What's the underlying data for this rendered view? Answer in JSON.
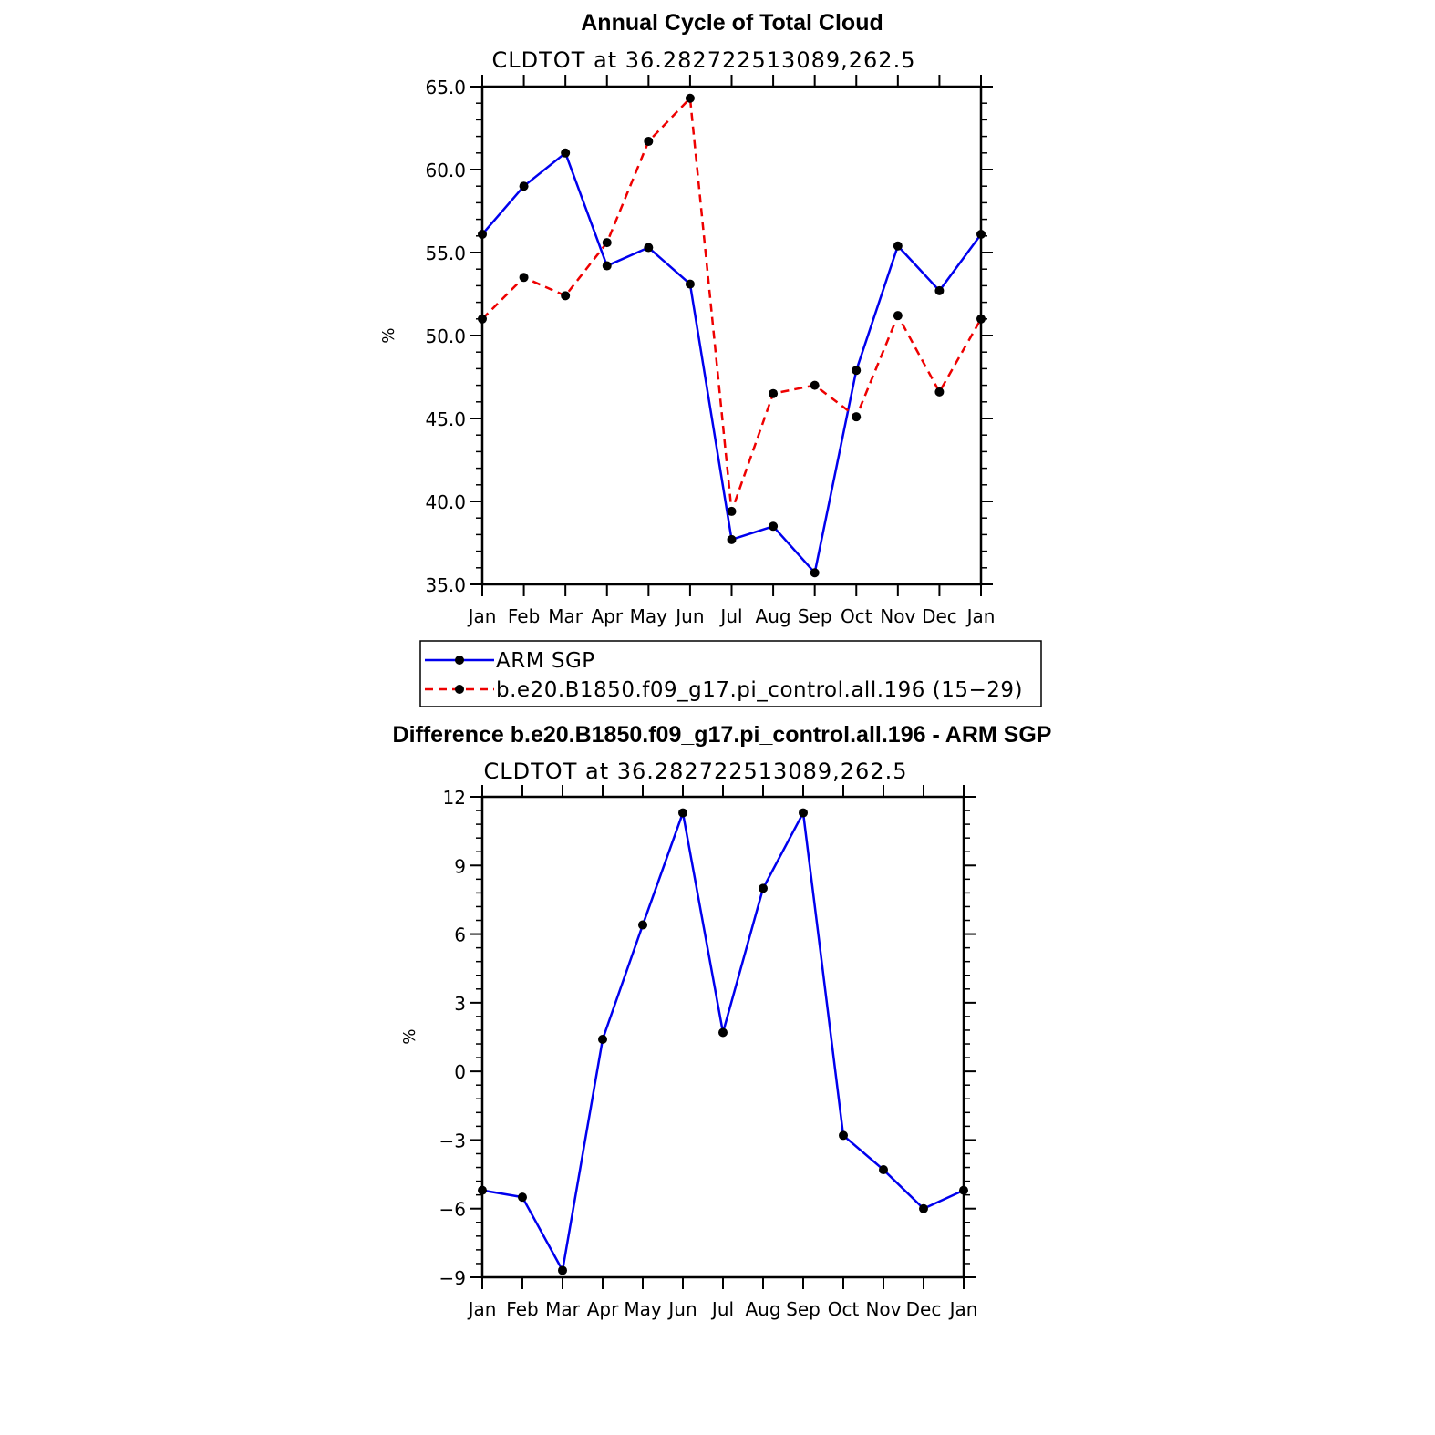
{
  "chart_data": [
    {
      "type": "line",
      "title": "Annual Cycle of Total Cloud",
      "subtitle": "CLDTOT at 36.282722513089,262.5",
      "ylabel": "%",
      "xlabel": "",
      "categories": [
        "Jan",
        "Feb",
        "Mar",
        "Apr",
        "May",
        "Jun",
        "Jul",
        "Aug",
        "Sep",
        "Oct",
        "Nov",
        "Dec",
        "Jan"
      ],
      "ylim": [
        35.0,
        65.0
      ],
      "yticks": [
        "35.0",
        "40.0",
        "45.0",
        "50.0",
        "55.0",
        "60.0",
        "65.0"
      ],
      "ytick_values": [
        35,
        40,
        45,
        50,
        55,
        60,
        65
      ],
      "series": [
        {
          "name": "ARM SGP",
          "color": "#0000ee",
          "style": "solid",
          "values": [
            56.1,
            59.0,
            61.0,
            54.2,
            55.3,
            53.1,
            37.7,
            38.5,
            35.7,
            47.9,
            55.4,
            52.7,
            56.1
          ]
        },
        {
          "name": "b.e20.B1850.f09_g17.pi_control.all.196 (15−29)",
          "color": "#ee0000",
          "style": "dashed",
          "values": [
            51.0,
            53.5,
            52.4,
            55.6,
            61.7,
            64.3,
            39.4,
            46.5,
            47.0,
            45.1,
            51.2,
            46.6,
            51.0
          ]
        }
      ],
      "legend": {
        "position": "bottom"
      }
    },
    {
      "type": "line",
      "title": "Difference b.e20.B1850.f09_g17.pi_control.all.196 - ARM SGP",
      "subtitle": "CLDTOT at 36.282722513089,262.5",
      "ylabel": "%",
      "xlabel": "",
      "categories": [
        "Jan",
        "Feb",
        "Mar",
        "Apr",
        "May",
        "Jun",
        "Jul",
        "Aug",
        "Sep",
        "Oct",
        "Nov",
        "Dec",
        "Jan"
      ],
      "ylim": [
        -9,
        12
      ],
      "yticks": [
        "−9",
        "−6",
        "−3",
        "0",
        "3",
        "6",
        "9",
        "12"
      ],
      "ytick_values": [
        -9,
        -6,
        -3,
        0,
        3,
        6,
        9,
        12
      ],
      "series": [
        {
          "name": "Difference",
          "color": "#0000ee",
          "style": "solid",
          "values": [
            -5.2,
            -5.5,
            -8.7,
            1.4,
            6.4,
            11.3,
            1.7,
            8.0,
            11.3,
            -2.8,
            -4.3,
            -6.0,
            -5.2
          ]
        }
      ]
    }
  ]
}
